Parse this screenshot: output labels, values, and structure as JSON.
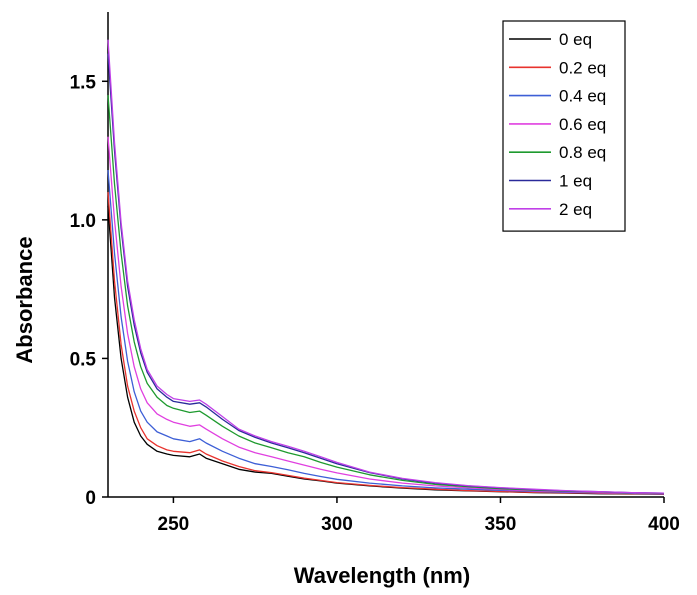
{
  "chart_data": {
    "type": "line",
    "xlabel": "Wavelength (nm)",
    "ylabel": "Absorbance",
    "xlim": [
      230,
      400
    ],
    "ylim": [
      0,
      1.75
    ],
    "x_ticks": [
      250,
      300,
      350,
      400
    ],
    "x_tick_labels": [
      "250",
      "300",
      "350",
      "400"
    ],
    "y_ticks": [
      0,
      0.5,
      1.0,
      1.5
    ],
    "y_tick_labels": [
      "0",
      "0.5",
      "1.0",
      "1.5"
    ],
    "grid": false,
    "legend_position": "top-right",
    "x": [
      230,
      232,
      234,
      236,
      238,
      240,
      242,
      245,
      248,
      250,
      255,
      258,
      260,
      265,
      270,
      275,
      280,
      285,
      290,
      295,
      300,
      310,
      320,
      330,
      340,
      350,
      360,
      370,
      380,
      390,
      400
    ],
    "series": [
      {
        "name": "0 eq",
        "color": "#000000",
        "values": [
          1.05,
          0.72,
          0.5,
          0.36,
          0.27,
          0.22,
          0.19,
          0.165,
          0.155,
          0.15,
          0.145,
          0.155,
          0.14,
          0.12,
          0.1,
          0.09,
          0.085,
          0.075,
          0.065,
          0.058,
          0.05,
          0.04,
          0.032,
          0.026,
          0.022,
          0.019,
          0.016,
          0.014,
          0.012,
          0.011,
          0.01
        ]
      },
      {
        "name": "0.2 eq",
        "color": "#e8332e",
        "values": [
          1.1,
          0.78,
          0.55,
          0.4,
          0.31,
          0.25,
          0.21,
          0.185,
          0.17,
          0.165,
          0.16,
          0.17,
          0.155,
          0.13,
          0.11,
          0.095,
          0.088,
          0.078,
          0.068,
          0.06,
          0.052,
          0.042,
          0.034,
          0.028,
          0.023,
          0.02,
          0.017,
          0.015,
          0.013,
          0.012,
          0.011
        ]
      },
      {
        "name": "0.4 eq",
        "color": "#3d5fd6",
        "values": [
          1.18,
          0.88,
          0.65,
          0.49,
          0.38,
          0.31,
          0.27,
          0.235,
          0.22,
          0.21,
          0.2,
          0.21,
          0.195,
          0.165,
          0.14,
          0.12,
          0.11,
          0.098,
          0.085,
          0.074,
          0.064,
          0.05,
          0.04,
          0.033,
          0.028,
          0.024,
          0.02,
          0.017,
          0.015,
          0.013,
          0.012
        ]
      },
      {
        "name": "0.6 eq",
        "color": "#e040e0",
        "values": [
          1.3,
          1.0,
          0.76,
          0.59,
          0.47,
          0.39,
          0.34,
          0.3,
          0.28,
          0.27,
          0.255,
          0.26,
          0.245,
          0.21,
          0.18,
          0.16,
          0.145,
          0.13,
          0.115,
          0.1,
          0.087,
          0.065,
          0.05,
          0.04,
          0.033,
          0.027,
          0.022,
          0.019,
          0.016,
          0.014,
          0.012
        ]
      },
      {
        "name": "0.8 eq",
        "color": "#1e9a2e",
        "values": [
          1.45,
          1.13,
          0.88,
          0.69,
          0.56,
          0.47,
          0.41,
          0.36,
          0.33,
          0.32,
          0.305,
          0.31,
          0.295,
          0.255,
          0.22,
          0.195,
          0.178,
          0.16,
          0.145,
          0.125,
          0.108,
          0.08,
          0.06,
          0.046,
          0.037,
          0.03,
          0.025,
          0.021,
          0.018,
          0.015,
          0.013
        ]
      },
      {
        "name": "1 eq",
        "color": "#2a2a9a",
        "values": [
          1.6,
          1.25,
          0.97,
          0.76,
          0.62,
          0.52,
          0.45,
          0.39,
          0.36,
          0.345,
          0.335,
          0.34,
          0.325,
          0.28,
          0.24,
          0.215,
          0.195,
          0.178,
          0.16,
          0.14,
          0.12,
          0.088,
          0.065,
          0.05,
          0.04,
          0.033,
          0.027,
          0.022,
          0.019,
          0.016,
          0.014
        ]
      },
      {
        "name": "2 eq",
        "color": "#c040e8",
        "values": [
          1.65,
          1.28,
          0.99,
          0.78,
          0.64,
          0.535,
          0.46,
          0.4,
          0.37,
          0.355,
          0.345,
          0.35,
          0.335,
          0.29,
          0.245,
          0.22,
          0.2,
          0.183,
          0.165,
          0.145,
          0.125,
          0.09,
          0.067,
          0.052,
          0.041,
          0.034,
          0.028,
          0.023,
          0.019,
          0.016,
          0.014
        ]
      }
    ]
  }
}
